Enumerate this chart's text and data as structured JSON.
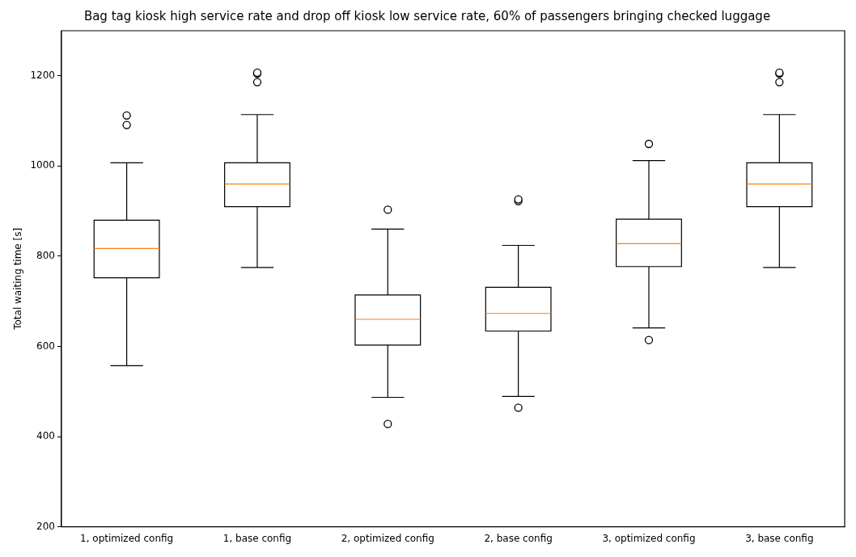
{
  "chart_data": {
    "type": "box",
    "title": "Bag tag kiosk high service rate and drop off kiosk low service rate, 60% of passengers bringing checked luggage",
    "ylabel": "Total waiting time [s]",
    "categories": [
      "1, optimized config",
      "1, base config",
      "2, optimized config",
      "2, base config",
      "3, optimized config",
      "3, base config"
    ],
    "boxes": [
      {
        "low": 557,
        "q1": 752,
        "median": 817,
        "q3": 880,
        "high": 1007,
        "outliers": [
          1091,
          1112
        ]
      },
      {
        "low": 775,
        "q1": 910,
        "median": 960,
        "q3": 1007,
        "high": 1114,
        "outliers": [
          1186,
          1205,
          1207
        ]
      },
      {
        "low": 487,
        "q1": 603,
        "median": 660,
        "q3": 714,
        "high": 860,
        "outliers": [
          428,
          903
        ]
      },
      {
        "low": 489,
        "q1": 634,
        "median": 673,
        "q3": 731,
        "high": 824,
        "outliers": [
          464,
          922,
          926
        ]
      },
      {
        "low": 641,
        "q1": 777,
        "median": 828,
        "q3": 882,
        "high": 1012,
        "outliers": [
          614,
          1049
        ]
      },
      {
        "low": 775,
        "q1": 910,
        "median": 960,
        "q3": 1007,
        "high": 1114,
        "outliers": [
          1186,
          1205,
          1207
        ]
      }
    ],
    "ylim": [
      200,
      1300
    ],
    "yticks": [
      200,
      400,
      600,
      800,
      1000,
      1200
    ],
    "grid": false,
    "legend": false
  }
}
